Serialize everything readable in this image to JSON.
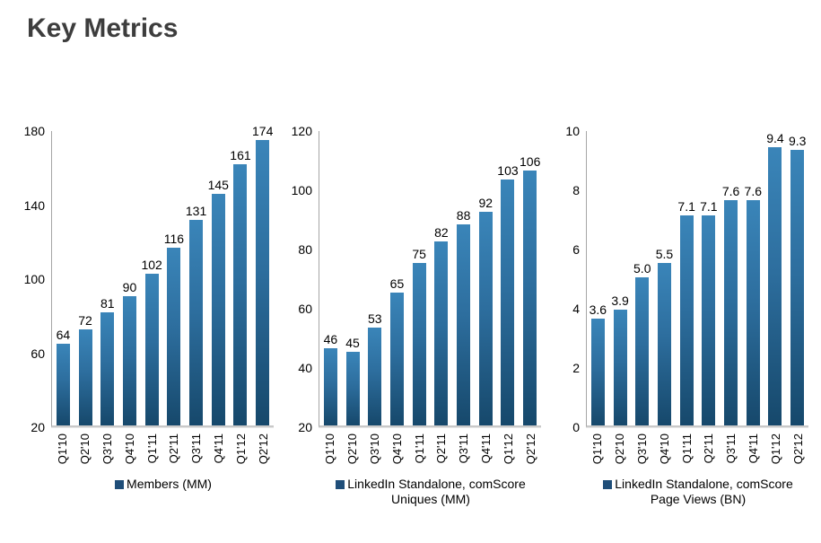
{
  "title": "Key Metrics",
  "colors": {
    "bar_top": "#3A85B9",
    "bar_mid": "#2D6E9E",
    "bar_bottom": "#16486B",
    "legend_swatch": "#1F4E79",
    "axis_line": "#A6A6A6",
    "baseline": "#C9C9C9",
    "title_text": "#3D3D3D"
  },
  "chart_data": [
    {
      "type": "bar",
      "title": "",
      "xlabel": "",
      "ylabel": "",
      "grid": false,
      "legend_position": "bottom",
      "categories": [
        "Q1'10",
        "Q2'10",
        "Q3'10",
        "Q4'10",
        "Q1'11",
        "Q2'11",
        "Q3'11",
        "Q4'11",
        "Q1'12",
        "Q2'12"
      ],
      "values": [
        64,
        72,
        81,
        90,
        102,
        116,
        131,
        145,
        161,
        174
      ],
      "labels": [
        "64",
        "72",
        "81",
        "90",
        "102",
        "116",
        "131",
        "145",
        "161",
        "174"
      ],
      "ylim": [
        20,
        180
      ],
      "yticks": [
        20,
        60,
        100,
        140,
        180
      ],
      "legend_lines": [
        "Members (MM)"
      ]
    },
    {
      "type": "bar",
      "title": "",
      "xlabel": "",
      "ylabel": "",
      "grid": false,
      "legend_position": "bottom",
      "categories": [
        "Q1'10",
        "Q2'10",
        "Q3'10",
        "Q4'10",
        "Q1'11",
        "Q2'11",
        "Q3'11",
        "Q4'11",
        "Q1'12",
        "Q2'12"
      ],
      "values": [
        46,
        45,
        53,
        65,
        75,
        82,
        88,
        92,
        103,
        106
      ],
      "labels": [
        "46",
        "45",
        "53",
        "65",
        "75",
        "82",
        "88",
        "92",
        "103",
        "106"
      ],
      "ylim": [
        20,
        120
      ],
      "yticks": [
        20,
        40,
        60,
        80,
        100,
        120
      ],
      "legend_lines": [
        "LinkedIn Standalone, comScore",
        "Uniques (MM)"
      ]
    },
    {
      "type": "bar",
      "title": "",
      "xlabel": "",
      "ylabel": "",
      "grid": false,
      "legend_position": "bottom",
      "categories": [
        "Q1'10",
        "Q2'10",
        "Q3'10",
        "Q4'10",
        "Q1'11",
        "Q2'11",
        "Q3'11",
        "Q4'11",
        "Q1'12",
        "Q2'12"
      ],
      "values": [
        3.6,
        3.9,
        5.0,
        5.5,
        7.1,
        7.1,
        7.6,
        7.6,
        9.4,
        9.3
      ],
      "labels": [
        "3.6",
        "3.9",
        "5.0",
        "5.5",
        "7.1",
        "7.1",
        "7.6",
        "7.6",
        "9.4",
        "9.3"
      ],
      "ylim": [
        0,
        10
      ],
      "yticks": [
        0,
        2,
        4,
        6,
        8,
        10
      ],
      "legend_lines": [
        "LinkedIn Standalone, comScore",
        "Page Views (BN)"
      ]
    }
  ]
}
